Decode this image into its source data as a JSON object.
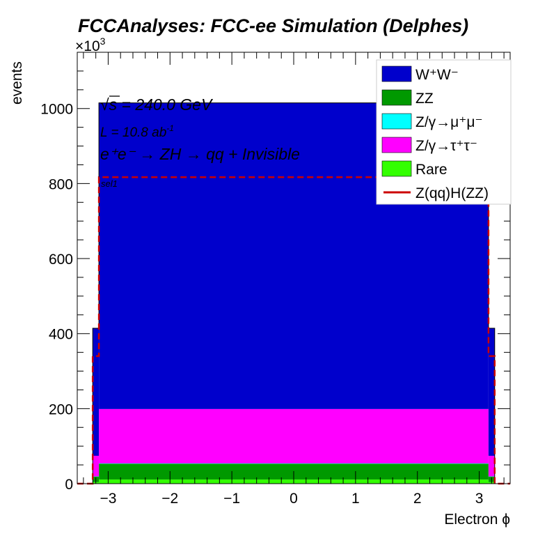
{
  "title": "FCCAnalyses: FCC-ee Simulation (Delphes)",
  "exponent_label_base": "×10",
  "exponent_label_power": "3",
  "annotations": {
    "sqrt_s_symbol": "√",
    "sqrt_s_text": "s = 240.0 GeV",
    "lumi_text": "L = 10.8 ab",
    "lumi_power": "-1",
    "process_text": "e⁺e⁻ → ZH → qq + Invisible",
    "selection": "sel1"
  },
  "chart_data": {
    "type": "histogram-stacked",
    "xlabel": "Electron ϕ",
    "ylabel": "events",
    "y_multiplier": 1000,
    "xlim": [
      -3.5,
      3.5
    ],
    "ylim": [
      0,
      1150
    ],
    "xticks": [
      -3,
      -2,
      -1,
      0,
      1,
      2,
      3
    ],
    "xtick_labels": [
      "−3",
      "−2",
      "−1",
      "0",
      "1",
      "2",
      "3"
    ],
    "yticks": [
      0,
      200,
      400,
      600,
      800,
      1000
    ],
    "ytick_labels": [
      "0",
      "200",
      "400",
      "600",
      "800",
      "1000"
    ],
    "bin_edges": [
      -3.5,
      -3.25,
      -3.15,
      3.15,
      3.25,
      3.5
    ],
    "stack_order": [
      "Rare",
      "ZZ",
      "Z/γ→μ⁺μ⁻",
      "Z/γ→τ⁺τ⁻",
      "W⁺W⁻"
    ],
    "series": [
      {
        "name": "W⁺W⁻",
        "color": "#0000cc",
        "values": [
          0,
          340,
          816,
          340,
          0
        ]
      },
      {
        "name": "ZZ",
        "color": "#009900",
        "values": [
          0,
          15,
          42,
          15,
          0
        ]
      },
      {
        "name": "Z/γ→μ⁺μ⁻",
        "color": "#00ffff",
        "values": [
          0,
          0.3,
          1,
          0.3,
          0
        ]
      },
      {
        "name": "Z/γ→τ⁺τ⁻",
        "color": "#ff00ff",
        "values": [
          0,
          55,
          145,
          55,
          0
        ]
      },
      {
        "name": "Rare",
        "color": "#33ff00",
        "values": [
          0,
          4,
          11,
          4,
          0
        ]
      }
    ],
    "signal": {
      "name": "Z(qq)H(ZZ)",
      "color": "#cc0000",
      "values": [
        0,
        340,
        817,
        340,
        0
      ]
    },
    "legend_position": "top-right"
  }
}
